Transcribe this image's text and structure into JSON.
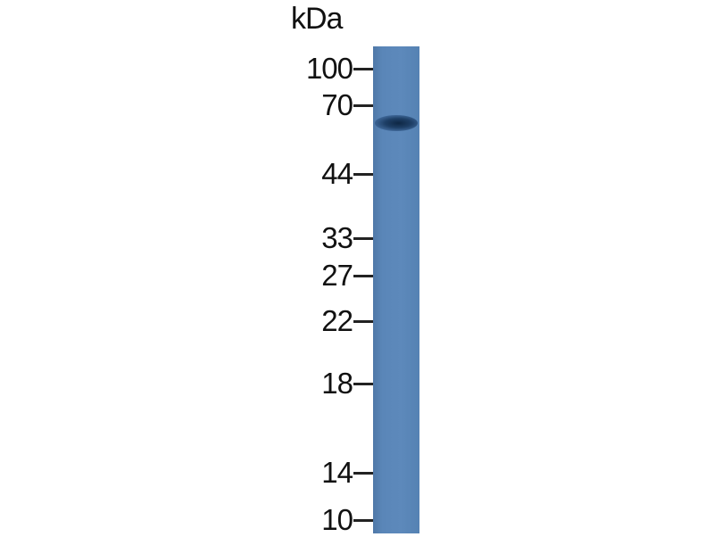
{
  "unit_label": "kDa",
  "markers": [
    {
      "label": "100",
      "kda": 100
    },
    {
      "label": "70",
      "kda": 70
    },
    {
      "label": "44",
      "kda": 44
    },
    {
      "label": "33",
      "kda": 33
    },
    {
      "label": "27",
      "kda": 27
    },
    {
      "label": "22",
      "kda": 22
    },
    {
      "label": "18",
      "kda": 18
    },
    {
      "label": "14",
      "kda": 14
    },
    {
      "label": "10",
      "kda": 10
    }
  ],
  "lanes": [
    {
      "bands": [
        {
          "kda": 62,
          "intensity": "strong"
        }
      ]
    }
  ],
  "colors": {
    "lane": "#5a86b8",
    "band": "#14304f"
  }
}
